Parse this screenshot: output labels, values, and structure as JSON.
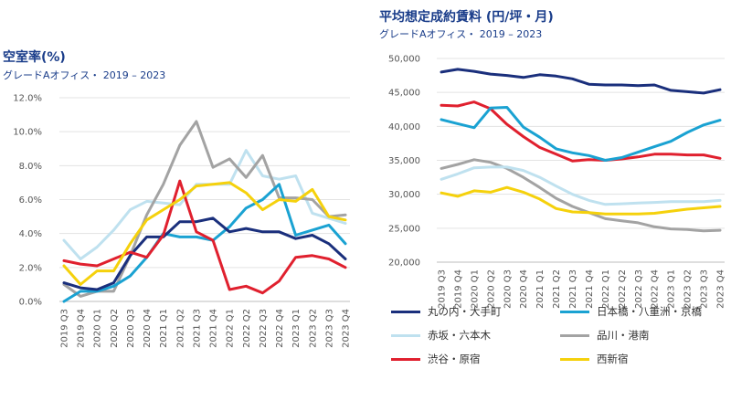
{
  "chart_data": [
    {
      "type": "line",
      "title": "空室率(%)",
      "subtitle": "グレードAオフィス・ 2019 – 2023",
      "xlabel": "",
      "ylabel": "",
      "ylim": [
        0,
        12
      ],
      "yticks": [
        "0.0%",
        "2.0%",
        "4.0%",
        "6.0%",
        "8.0%",
        "10.0%",
        "12.0%"
      ],
      "grid": true,
      "categories": [
        "2019 Q3",
        "2019 Q4",
        "2020 Q1",
        "2020 Q2",
        "2020 Q3",
        "2020 Q4",
        "2021 Q1",
        "2021 Q2",
        "2021 Q3",
        "2021 Q4",
        "2022 Q1",
        "2022 Q2",
        "2022 Q3",
        "2022 Q4",
        "2023 Q1",
        "2023 Q2",
        "2023 Q3",
        "2023 Q4"
      ],
      "series": [
        {
          "name": "赤坂・六本木",
          "color": "#bfe1ef",
          "values": [
            3.6,
            2.5,
            3.2,
            4.2,
            5.4,
            5.9,
            5.8,
            5.7,
            6.9,
            6.9,
            6.9,
            8.9,
            7.4,
            7.2,
            7.4,
            5.2,
            4.9,
            4.6
          ]
        },
        {
          "name": "品川・港南",
          "color": "#a3a3a3",
          "values": [
            1.0,
            0.3,
            0.6,
            0.6,
            2.7,
            5.1,
            6.9,
            9.2,
            10.6,
            7.9,
            8.4,
            7.3,
            8.6,
            6.1,
            6.1,
            6.0,
            5.0,
            5.1
          ]
        },
        {
          "name": "日本橋・八重洲・京橋",
          "color": "#1aa2d2",
          "values": [
            0.0,
            0.6,
            0.6,
            0.9,
            1.5,
            2.6,
            4.0,
            3.8,
            3.8,
            3.6,
            4.4,
            5.5,
            6.0,
            6.9,
            3.9,
            4.2,
            4.5,
            3.4
          ]
        },
        {
          "name": "丸の内・大手町",
          "color": "#1a2f7c",
          "values": [
            1.1,
            0.8,
            0.7,
            1.1,
            2.7,
            3.8,
            3.8,
            4.7,
            4.7,
            4.9,
            4.1,
            4.3,
            4.1,
            4.1,
            3.7,
            3.9,
            3.4,
            2.5
          ]
        },
        {
          "name": "渋谷・原宿",
          "color": "#e0202e",
          "values": [
            2.4,
            2.2,
            2.1,
            2.5,
            2.9,
            2.6,
            3.9,
            7.1,
            4.1,
            3.6,
            0.7,
            0.9,
            0.5,
            1.2,
            2.6,
            2.7,
            2.5,
            2.0
          ]
        },
        {
          "name": "西新宿",
          "color": "#f5d10c",
          "values": [
            2.1,
            1.0,
            1.8,
            1.8,
            3.4,
            4.8,
            5.4,
            6.0,
            6.8,
            6.9,
            7.0,
            6.4,
            5.4,
            6.0,
            5.9,
            6.6,
            5.0,
            4.8
          ]
        }
      ]
    },
    {
      "type": "line",
      "title": "平均想定成約賃料 (円/坪・月)",
      "subtitle": "グレードAオフィス・ 2019 – 2023",
      "xlabel": "",
      "ylabel": "",
      "ylim": [
        20000,
        50000
      ],
      "yticks": [
        "20,000",
        "25,000",
        "30,000",
        "35,000",
        "40,000",
        "45,000",
        "50,000"
      ],
      "grid": true,
      "categories": [
        "2019 Q3",
        "2019 Q4",
        "2020 Q1",
        "2020 Q2",
        "2020 Q3",
        "2020 Q4",
        "2021 Q1",
        "2021 Q2",
        "2021 Q3",
        "2021 Q4",
        "2022 Q1",
        "2022 Q2",
        "2022 Q3",
        "2022 Q4",
        "2023 Q1",
        "2023 Q2",
        "2023 Q3",
        "2023 Q4"
      ],
      "series": [
        {
          "name": "丸の内・大手町",
          "color": "#1a2f7c",
          "values": [
            48000,
            48400,
            48100,
            47700,
            47500,
            47200,
            47600,
            47400,
            47000,
            46200,
            46100,
            46100,
            46000,
            46100,
            45300,
            45100,
            44900,
            45400
          ]
        },
        {
          "name": "渋谷・原宿",
          "color": "#e0202e",
          "values": [
            43100,
            43000,
            43600,
            42600,
            40300,
            38500,
            36900,
            35900,
            34900,
            35100,
            35000,
            35200,
            35500,
            35900,
            35900,
            35800,
            35800,
            35300
          ]
        },
        {
          "name": "日本橋・八重洲・京橋",
          "color": "#1aa2d2",
          "values": [
            41000,
            40400,
            39800,
            42700,
            42800,
            39900,
            38400,
            36700,
            36100,
            35700,
            35000,
            35400,
            36200,
            37000,
            37800,
            39100,
            40200,
            40900
          ]
        },
        {
          "name": "品川・港南",
          "color": "#a3a3a3",
          "values": [
            33800,
            34400,
            35100,
            34700,
            33800,
            32500,
            31000,
            29400,
            28200,
            27300,
            26400,
            26100,
            25800,
            25200,
            24900,
            24800,
            24600,
            24700
          ]
        },
        {
          "name": "赤坂・六本木",
          "color": "#bfe1ef",
          "values": [
            32200,
            33000,
            33900,
            34000,
            34000,
            33500,
            32500,
            31200,
            30000,
            29100,
            28500,
            28600,
            28700,
            28800,
            28900,
            28900,
            28900,
            29100
          ]
        },
        {
          "name": "西新宿",
          "color": "#f5d10c",
          "values": [
            30200,
            29700,
            30500,
            30300,
            31000,
            30300,
            29300,
            27900,
            27400,
            27300,
            27100,
            27100,
            27100,
            27200,
            27500,
            27800,
            28000,
            28200
          ]
        }
      ]
    }
  ],
  "legend": [
    {
      "label": "丸の内・大手町",
      "color": "#1a2f7c"
    },
    {
      "label": "日本橋・八重洲・京橋",
      "color": "#1aa2d2"
    },
    {
      "label": "赤坂・六本木",
      "color": "#bfe1ef"
    },
    {
      "label": "品川・港南",
      "color": "#a3a3a3"
    },
    {
      "label": "渋谷・原宿",
      "color": "#e0202e"
    },
    {
      "label": "西新宿",
      "color": "#f5d10c"
    }
  ]
}
